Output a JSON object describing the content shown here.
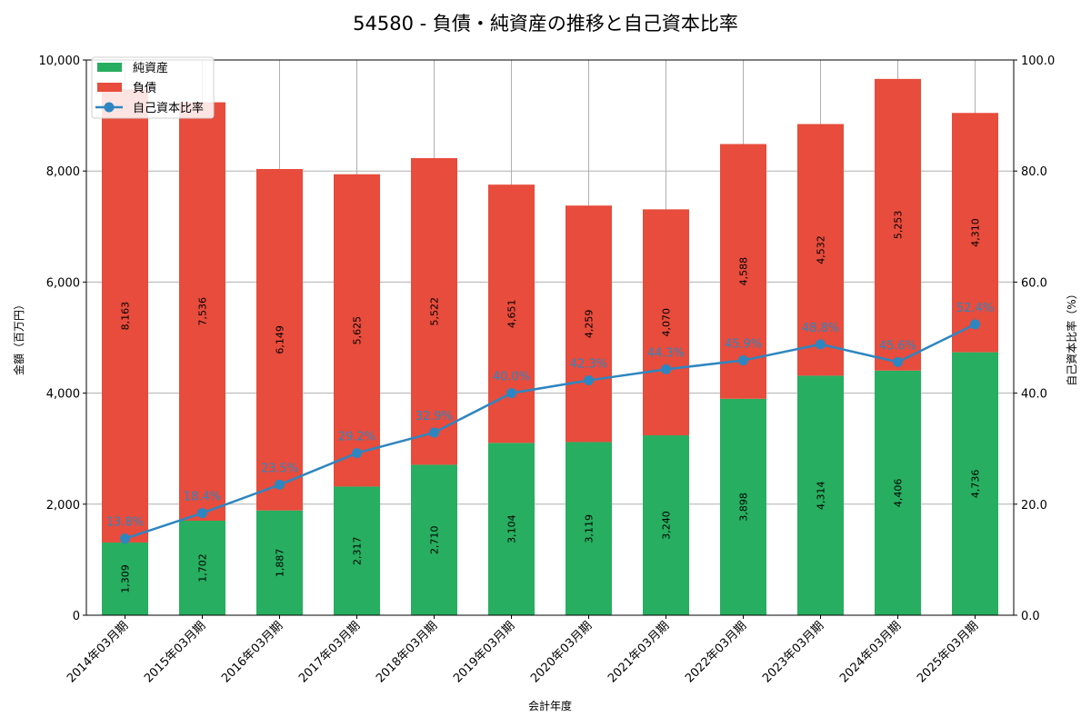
{
  "chart_data": {
    "type": "bar",
    "title": "54580 - 負債・純資産の推移と自己資本比率",
    "xlabel": "会計年度",
    "ylabel": "金額（百万円）",
    "y2label": "自己資本比率（%）",
    "ylim": [
      0,
      10000
    ],
    "y2lim": [
      0,
      100
    ],
    "yticks": [
      "0",
      "2,000",
      "4,000",
      "6,000",
      "8,000",
      "10,000"
    ],
    "y2ticks": [
      "0.0",
      "20.0",
      "40.0",
      "60.0",
      "80.0",
      "100.0"
    ],
    "grid": true,
    "stacked": true,
    "legend_position": "top-left",
    "categories": [
      "2014年03月期",
      "2015年03月期",
      "2016年03月期",
      "2017年03月期",
      "2018年03月期",
      "2019年03月期",
      "2020年03月期",
      "2021年03月期",
      "2022年03月期",
      "2023年03月期",
      "2024年03月期",
      "2025年03月期"
    ],
    "series": [
      {
        "name": "純資産",
        "type": "bar",
        "color": "#27ae60",
        "values": [
          1309,
          1702,
          1887,
          2317,
          2710,
          3104,
          3119,
          3240,
          3898,
          4314,
          4406,
          4736
        ],
        "labels": [
          "1,309",
          "1,702",
          "1,887",
          "2,317",
          "2,710",
          "3,104",
          "3,119",
          "3,240",
          "3,898",
          "4,314",
          "4,406",
          "4,736"
        ]
      },
      {
        "name": "負債",
        "type": "bar",
        "color": "#e74c3c",
        "values": [
          8163,
          7536,
          6149,
          5625,
          5522,
          4651,
          4259,
          4070,
          4588,
          4532,
          5253,
          4310
        ],
        "labels": [
          "8,163",
          "7,536",
          "6,149",
          "5,625",
          "5,522",
          "4,651",
          "4,259",
          "4,070",
          "4,588",
          "4,532",
          "5,253",
          "4,310"
        ]
      },
      {
        "name": "自己資本比率",
        "type": "line",
        "axis": "right",
        "color": "#2e86c1",
        "values": [
          13.8,
          18.4,
          23.5,
          29.2,
          32.9,
          40.0,
          42.3,
          44.3,
          45.9,
          48.8,
          45.6,
          52.4
        ],
        "labels": [
          "13.8%",
          "18.4%",
          "23.5%",
          "29.2%",
          "32.9%",
          "40.0%",
          "42.3%",
          "44.3%",
          "45.9%",
          "48.8%",
          "45.6%",
          "52.4%"
        ]
      }
    ]
  }
}
